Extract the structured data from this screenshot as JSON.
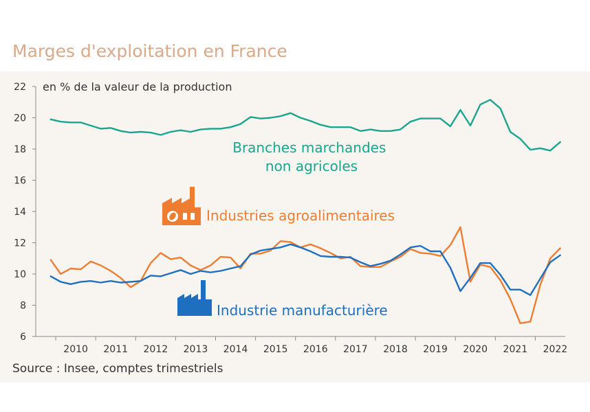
{
  "title": "Marges d'exploitation en France",
  "source": "Source : Insee, comptes trimestriels",
  "colors": {
    "title": "#d9a98a",
    "background": "#f8f4f0",
    "teal": "#1aa58e",
    "orange": "#ee7d31",
    "blue": "#1f6fc0"
  },
  "chart_data": {
    "type": "line",
    "ylabel": "en % de la valeur de la production",
    "ylim": [
      6,
      22
    ],
    "yticks": [
      6,
      8,
      10,
      12,
      14,
      16,
      18,
      20,
      22
    ],
    "xlim": [
      2009.5,
      2022.75
    ],
    "xticks": [
      "2010",
      "2011",
      "2012",
      "2013",
      "2014",
      "2015",
      "2016",
      "2017",
      "2018",
      "2019",
      "2020",
      "2021",
      "2022"
    ],
    "grid": false,
    "x_start": "2009-T4",
    "frequency": "quarterly",
    "series": [
      {
        "name": "Branches marchandes non agricoles",
        "label_lines": [
          "Branches marchandes",
          "non agricoles"
        ],
        "color": "#1aa58e",
        "icon": "",
        "values": [
          19.9,
          19.75,
          19.7,
          19.7,
          19.5,
          19.3,
          19.35,
          19.15,
          19.05,
          19.1,
          19.05,
          18.9,
          19.1,
          19.2,
          19.1,
          19.25,
          19.3,
          19.3,
          19.4,
          19.6,
          20.05,
          19.95,
          20.0,
          20.1,
          20.3,
          20.0,
          19.8,
          19.55,
          19.4,
          19.4,
          19.4,
          19.15,
          19.25,
          19.15,
          19.15,
          19.25,
          19.75,
          19.95,
          19.95,
          19.95,
          19.45,
          20.5,
          19.5,
          20.85,
          21.15,
          20.6,
          19.1,
          18.65,
          17.95,
          18.05,
          17.9,
          18.45
        ]
      },
      {
        "name": "Industries agroalimentaires",
        "label_lines": [
          "Industries agroalimentaires"
        ],
        "color": "#ee7d31",
        "icon": "factory-leaf-icon",
        "values": [
          10.9,
          10.0,
          10.35,
          10.3,
          10.8,
          10.55,
          10.2,
          9.75,
          9.15,
          9.55,
          10.7,
          11.35,
          10.95,
          11.05,
          10.55,
          10.25,
          10.55,
          11.1,
          11.05,
          10.35,
          11.3,
          11.3,
          11.5,
          12.1,
          12.05,
          11.7,
          11.9,
          11.65,
          11.35,
          11.0,
          11.1,
          10.5,
          10.45,
          10.45,
          10.8,
          11.1,
          11.6,
          11.35,
          11.3,
          11.15,
          11.85,
          13.0,
          9.5,
          10.6,
          10.45,
          9.6,
          8.4,
          6.85,
          6.95,
          9.3,
          11.0,
          11.65
        ]
      },
      {
        "name": "Industrie manufacturière",
        "label_lines": [
          "Industrie manufacturière"
        ],
        "color": "#1f6fc0",
        "icon": "factory-icon",
        "values": [
          9.85,
          9.5,
          9.35,
          9.5,
          9.55,
          9.45,
          9.55,
          9.45,
          9.5,
          9.55,
          9.9,
          9.85,
          10.05,
          10.25,
          10.0,
          10.2,
          10.1,
          10.2,
          10.35,
          10.5,
          11.25,
          11.5,
          11.6,
          11.7,
          11.9,
          11.7,
          11.45,
          11.15,
          11.1,
          11.1,
          11.05,
          10.75,
          10.5,
          10.65,
          10.85,
          11.25,
          11.7,
          11.8,
          11.45,
          11.45,
          10.4,
          8.9,
          9.75,
          10.7,
          10.7,
          9.95,
          9.0,
          9.0,
          8.65,
          9.7,
          10.75,
          11.2
        ]
      }
    ]
  }
}
